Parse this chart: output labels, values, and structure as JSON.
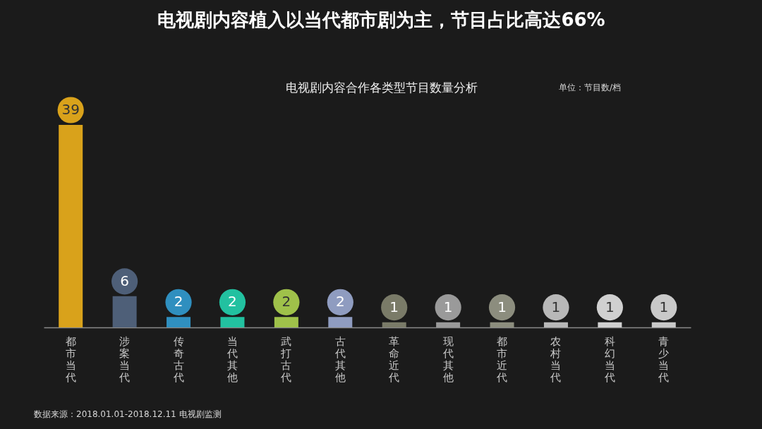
{
  "chart_data": {
    "type": "bar",
    "title": "电视剧内容植入以当代都市剧为主，节目占比高达66%",
    "subtitle": "电视剧内容合作各类型节目数量分析",
    "categories": [
      "都市当代",
      "涉案当代",
      "传奇古代",
      "当代其他",
      "武打古代",
      "古代其他",
      "革命近代",
      "现代其他",
      "都市近代",
      "农村当代",
      "科幻当代",
      "青少当代"
    ],
    "values": [
      39,
      6,
      2,
      2,
      2,
      2,
      1,
      1,
      1,
      1,
      1,
      1
    ],
    "colors": [
      "#d9a21b",
      "#4e5f78",
      "#2f8fbf",
      "#22c1a0",
      "#9fc14a",
      "#8f9cc0",
      "#7a7b68",
      "#9a9a9a",
      "#8c8d7e",
      "#b8b8b8",
      "#d0d0d0",
      "#c9c9c9"
    ],
    "data_labels": true,
    "annotations": [
      "单位：节目数/档",
      "数据来源：2018.01.01-2018.12.11 电视剧监测"
    ]
  }
}
